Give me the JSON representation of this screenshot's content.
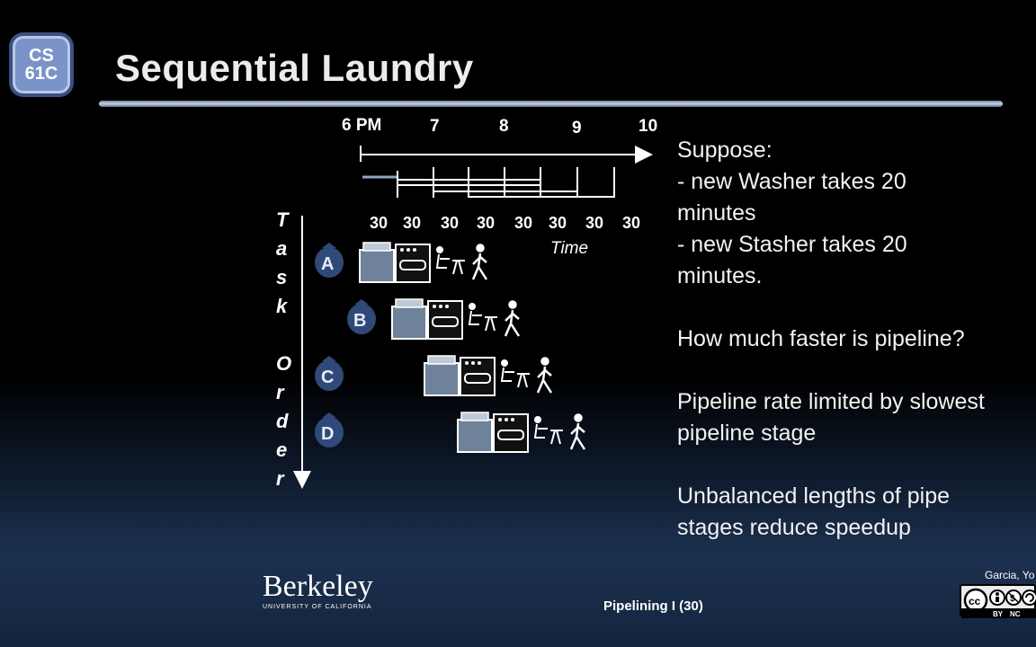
{
  "logo": {
    "line1": "CS",
    "line2": "61C"
  },
  "title": "Sequential Laundry",
  "timeline": {
    "hours": [
      "6 PM",
      "7",
      "8",
      "9",
      "10"
    ],
    "durations": [
      "30",
      "30",
      "30",
      "30",
      "30",
      "30",
      "30",
      "30"
    ],
    "time_label": "Time"
  },
  "task_order_label": "Task Order",
  "tasks": [
    "A",
    "B",
    "C",
    "D"
  ],
  "bullets": [
    "Suppose:",
    "- new Washer takes 20",
    "minutes",
    "- new Stasher takes 20",
    "minutes.",
    "",
    "How much faster is pipeline?",
    "",
    "Pipeline rate limited by slowest",
    "pipeline stage",
    "",
    "Unbalanced lengths of pipe",
    "stages reduce speedup"
  ],
  "footer": {
    "university": "Berkeley",
    "university_sub": "UNIVERSITY OF CALIFORNIA",
    "lecture": "Pipelining I (30)",
    "author": "Garcia, Yo",
    "license_icons": [
      "cc-icon",
      "by-icon",
      "nc-icon",
      "sa-icon"
    ],
    "license_text": [
      "BY",
      "NC"
    ]
  },
  "colors": {
    "title_rule": "#c7d2e6",
    "logo": "#7b93c9",
    "washer": "#6e8399",
    "bag": "#2f4a78"
  }
}
